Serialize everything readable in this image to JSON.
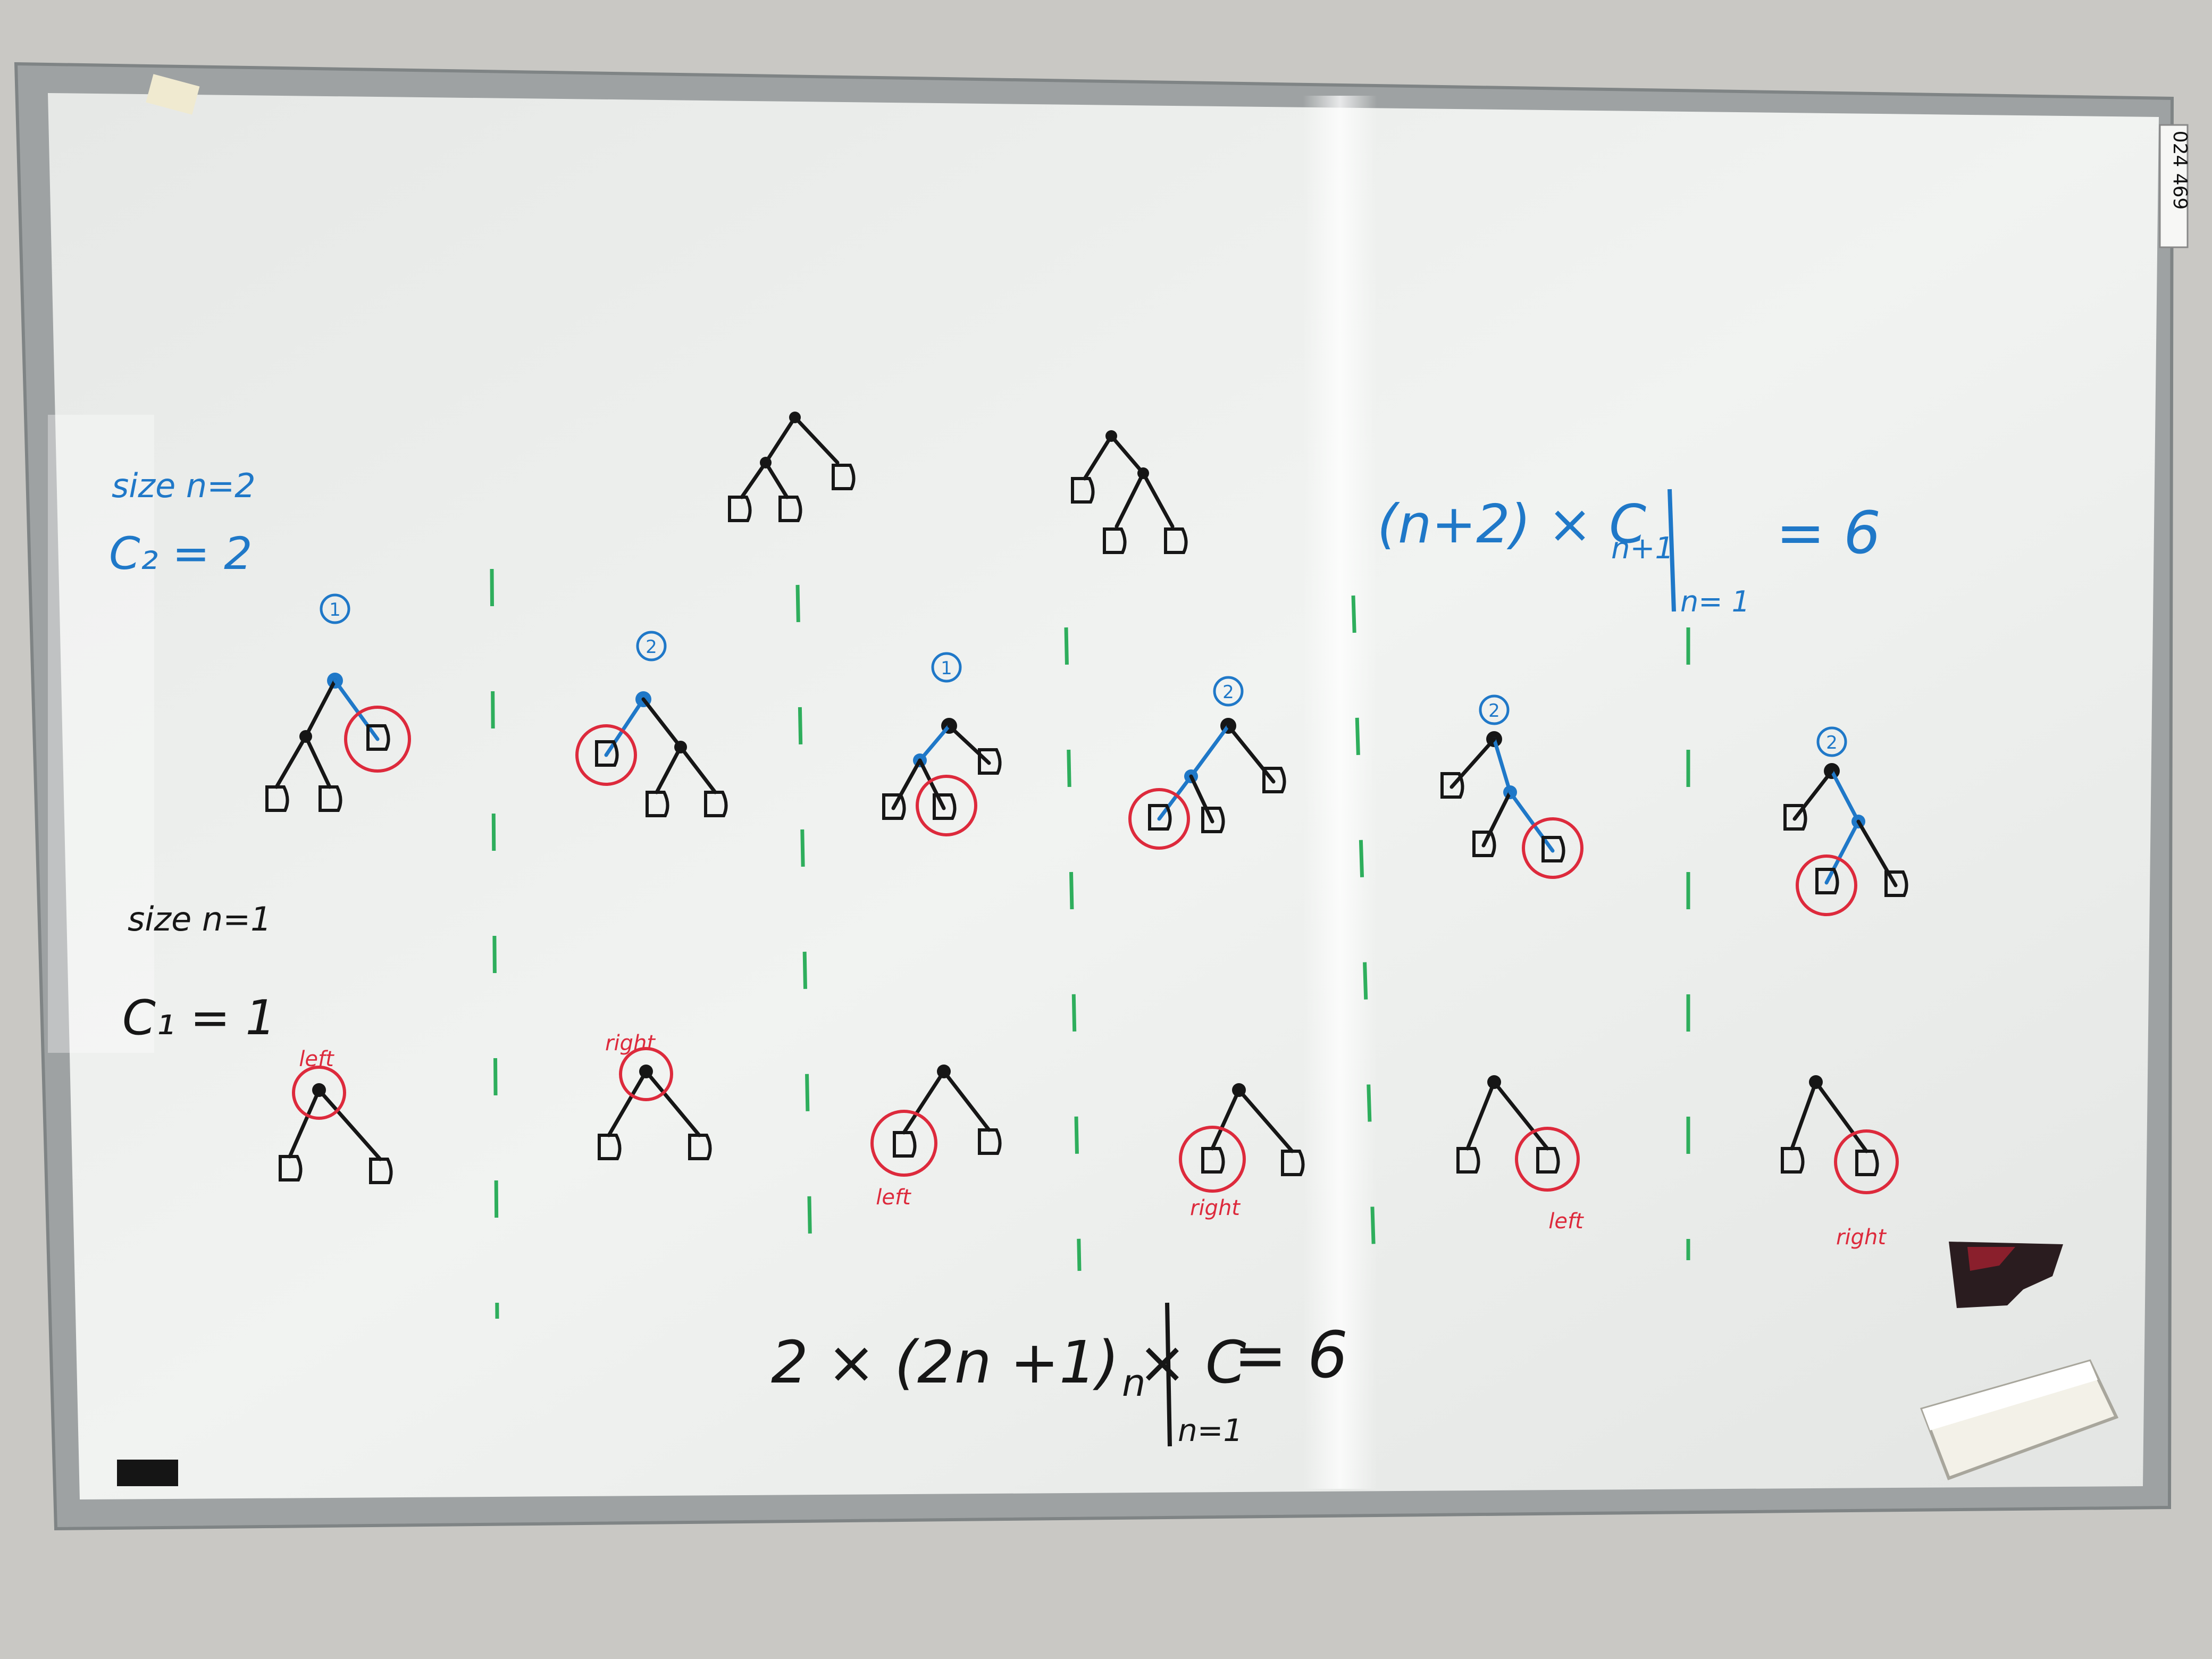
{
  "colors": {
    "wall": "#c9c8c4",
    "frame": "#9ea2a3",
    "board": "#eceeec",
    "black_marker": "#161616",
    "blue_marker": "#1f78c8",
    "red_marker": "#dd2a3c",
    "green_marker": "#2eae5c"
  },
  "board": {
    "sticker": "024 469"
  },
  "left_notes": {
    "size_n2": "size  n=2",
    "c2": "C₂ = 2",
    "size_n1": "size  n=1",
    "c1": "C₁ = 1"
  },
  "formula_top": {
    "text": "(n+2) × C",
    "sub": "n+1",
    "cond": "n= 1",
    "result": "= 6"
  },
  "formula_bottom": {
    "text": "2 × (2n +1) × C",
    "sub": "n",
    "cond": "n=1",
    "result": "= 6"
  },
  "top_row_markers": [
    "1",
    "2",
    "1",
    "2",
    "2",
    "2"
  ],
  "bottom_row_labels": [
    "left",
    "right",
    "left",
    "right",
    "left",
    "right"
  ],
  "icons": [
    "eraser-icon",
    "magnet-icon",
    "tape-icon"
  ]
}
